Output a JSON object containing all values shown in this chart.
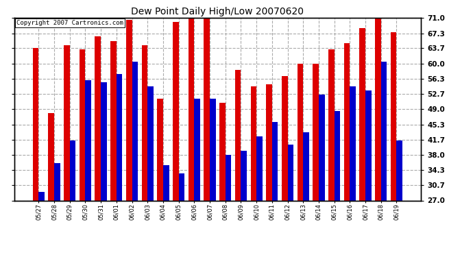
{
  "title": "Dew Point Daily High/Low 20070620",
  "copyright": "Copyright 2007 Cartronics.com",
  "categories": [
    "05/27",
    "05/28",
    "05/29",
    "05/30",
    "05/31",
    "06/01",
    "06/02",
    "06/03",
    "06/04",
    "06/05",
    "06/06",
    "06/07",
    "06/08",
    "06/09",
    "06/10",
    "06/11",
    "06/12",
    "06/13",
    "06/14",
    "06/15",
    "06/16",
    "06/17",
    "06/18",
    "06/19"
  ],
  "highs": [
    63.7,
    48.0,
    64.5,
    63.5,
    66.5,
    65.5,
    70.5,
    64.5,
    51.5,
    70.0,
    71.0,
    71.5,
    50.5,
    58.5,
    54.5,
    55.0,
    57.0,
    60.0,
    60.0,
    63.5,
    65.0,
    68.5,
    71.5,
    67.5
  ],
  "lows": [
    29.0,
    36.0,
    41.5,
    56.0,
    55.5,
    57.5,
    60.5,
    54.5,
    35.5,
    33.5,
    51.5,
    51.5,
    38.0,
    39.0,
    42.5,
    46.0,
    40.5,
    43.5,
    52.5,
    48.5,
    54.5,
    53.5,
    60.5,
    41.5
  ],
  "high_color": "#dd0000",
  "low_color": "#0000cc",
  "bg_color": "#ffffff",
  "grid_color": "#aaaaaa",
  "ymin": 27.0,
  "ymax": 71.0,
  "yticks": [
    27.0,
    30.7,
    34.3,
    38.0,
    41.7,
    45.3,
    49.0,
    52.7,
    56.3,
    60.0,
    63.7,
    67.3,
    71.0
  ]
}
